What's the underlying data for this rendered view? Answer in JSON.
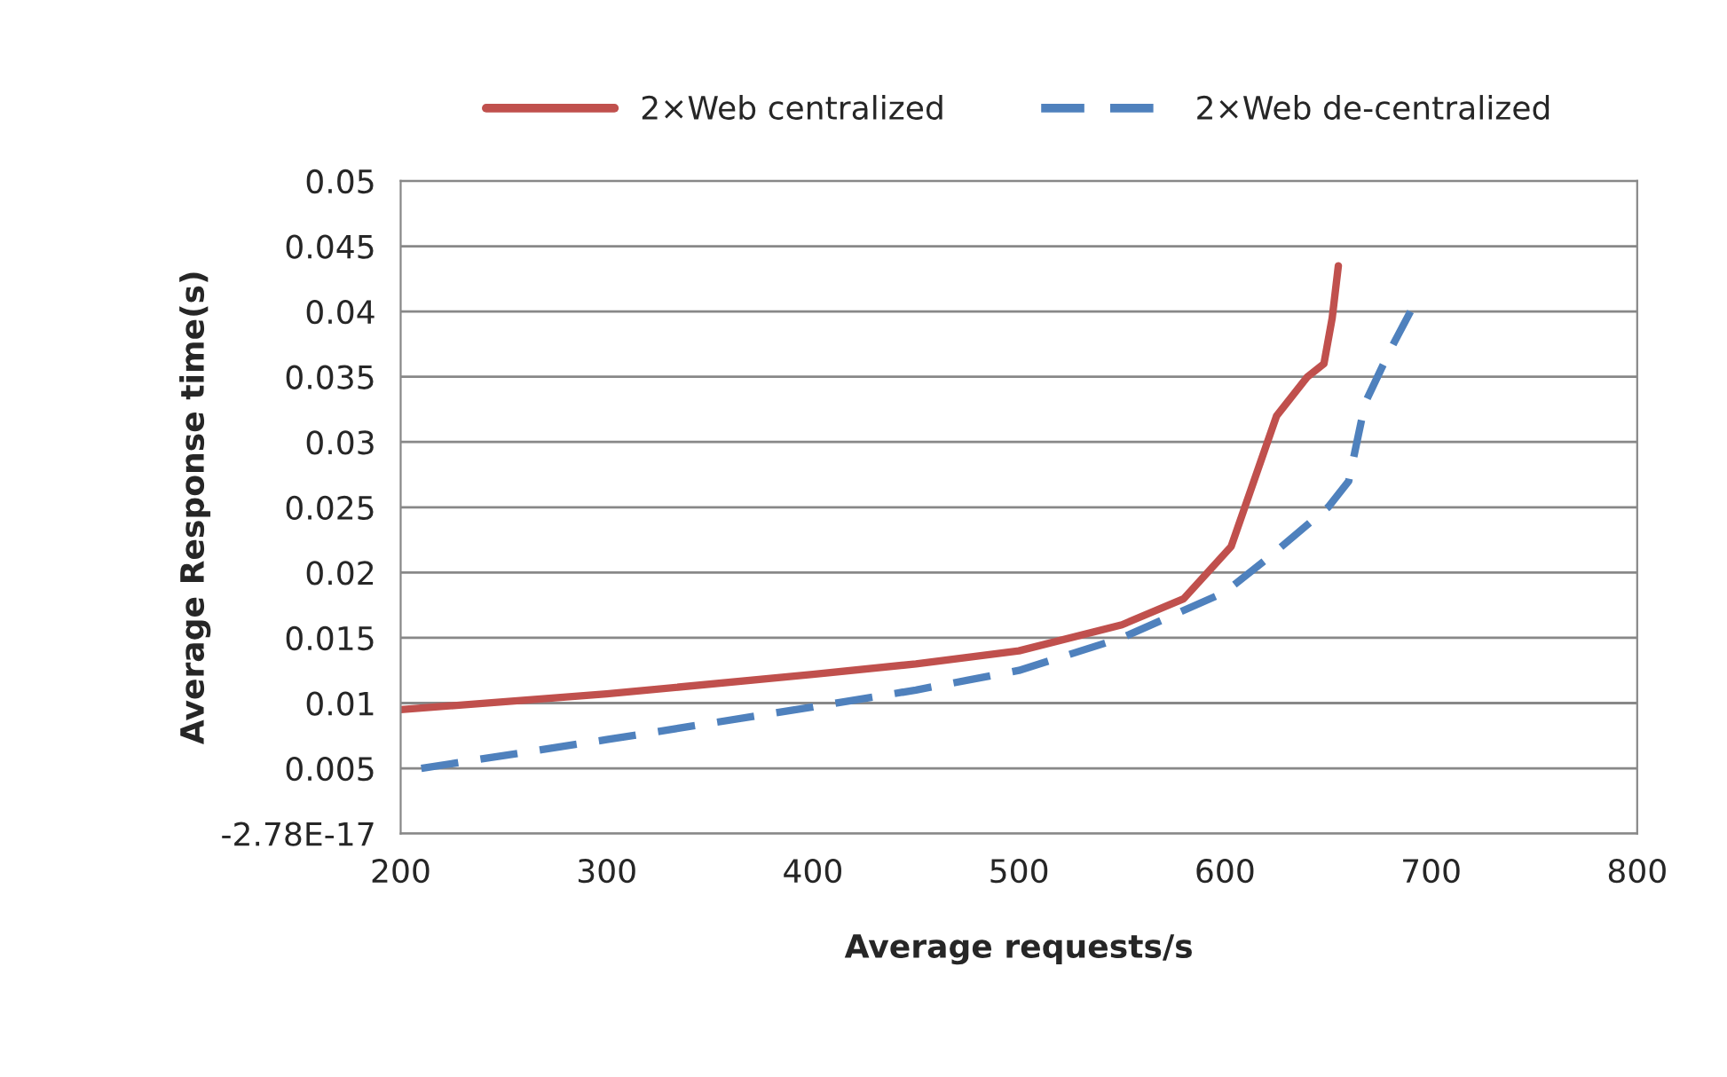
{
  "chart_data": {
    "type": "line",
    "xlabel": "Average requests/s",
    "ylabel": "Average Response time(s)",
    "xlim": [
      200,
      800
    ],
    "xticks": [
      200,
      300,
      400,
      500,
      600,
      700,
      800
    ],
    "ylim": [
      0,
      0.05
    ],
    "yticks": [
      {
        "value": 0,
        "label": "-2.78E-17"
      },
      0.005,
      0.01,
      0.015,
      0.02,
      0.025,
      0.03,
      0.035,
      0.04,
      0.045,
      0.05
    ],
    "grid": "y",
    "legend": "top",
    "series": [
      {
        "name": "2×Web centralized",
        "color": "#c0504d",
        "line_style": "solid",
        "x": [
          200,
          300,
          400,
          450,
          500,
          550,
          580,
          603,
          625,
          640,
          648,
          652,
          655
        ],
        "values": [
          0.0095,
          0.0107,
          0.0122,
          0.013,
          0.014,
          0.016,
          0.018,
          0.022,
          0.032,
          0.035,
          0.036,
          0.0395,
          0.0435
        ]
      },
      {
        "name": "2×Web de-centralized",
        "color": "#4f81bd",
        "line_style": "dashed",
        "x": [
          210,
          300,
          400,
          450,
          500,
          550,
          600,
          620,
          650,
          660,
          668,
          680,
          690
        ],
        "values": [
          0.005,
          0.0072,
          0.0097,
          0.011,
          0.0125,
          0.015,
          0.0185,
          0.021,
          0.025,
          0.027,
          0.033,
          0.037,
          0.04
        ]
      }
    ]
  }
}
